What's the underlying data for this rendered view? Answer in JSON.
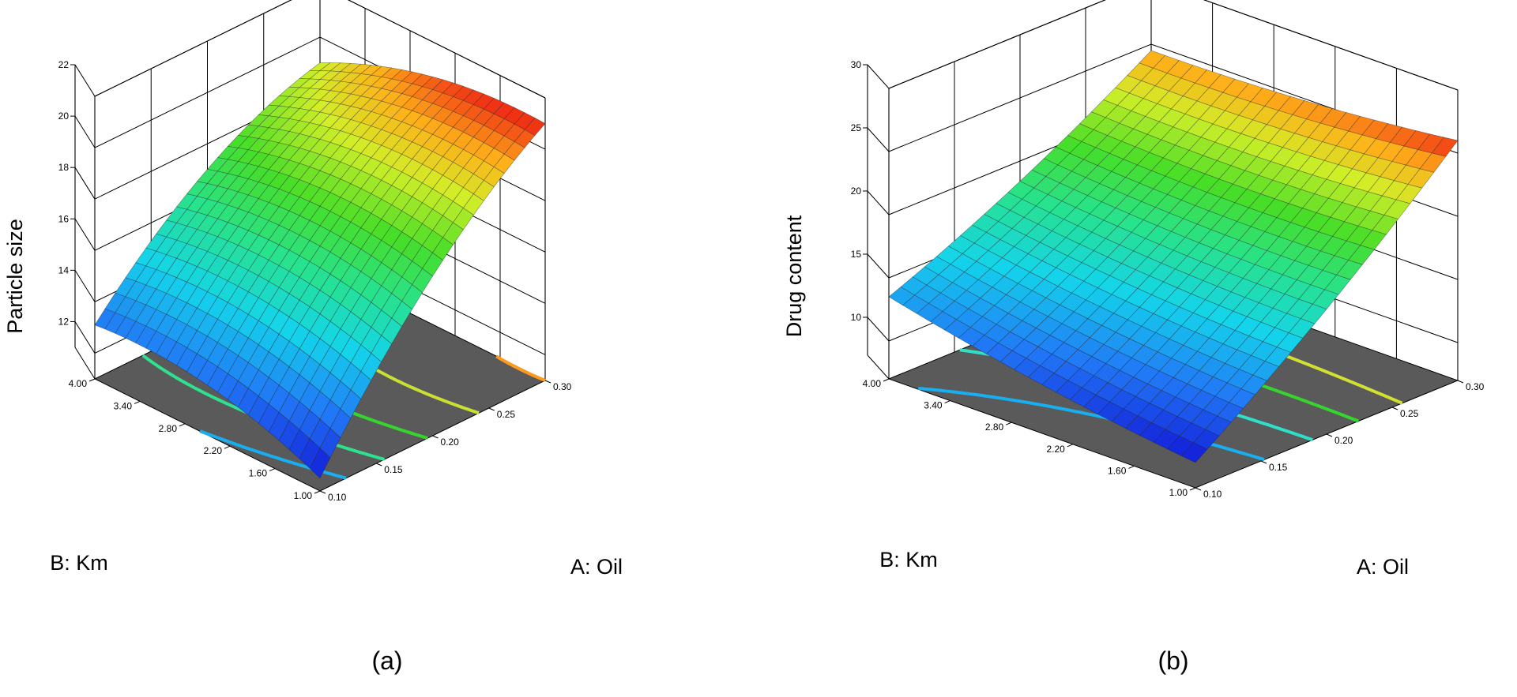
{
  "chart_data": [
    {
      "type": "surface3d",
      "panel_label": "(a)",
      "xlabel": "A: Oil",
      "ylabel": "B: Km",
      "zlabel": "Particle size",
      "xlim": [
        0.1,
        0.3
      ],
      "ylim": [
        1.0,
        4.0
      ],
      "zlim": [
        11,
        22
      ],
      "x_ticks": [
        "0.10",
        "0.15",
        "0.20",
        "0.25",
        "0.30"
      ],
      "y_ticks": [
        "1.00",
        "1.60",
        "2.20",
        "2.80",
        "3.40",
        "4.00"
      ],
      "z_ticks": [
        "12",
        "14",
        "16",
        "18",
        "20",
        "22"
      ],
      "surface_corners": {
        "x0.10_y1.00": 11.5,
        "x0.30_y1.00": 21.0,
        "x0.10_y4.00": 13.1,
        "x0.30_y4.00": 19.0
      },
      "surface_curvature": 1.6,
      "color_range": [
        11.5,
        21.0
      ],
      "contour_levels": [
        13,
        15,
        17,
        19,
        21
      ],
      "contour_colors": [
        "#19aef0",
        "#2fe08e",
        "#37d42f",
        "#c9e032",
        "#ff9a1c"
      ]
    },
    {
      "type": "surface3d",
      "panel_label": "(b)",
      "xlabel": "A: Oil",
      "ylabel": "B: Km",
      "zlabel": "Drug content",
      "xlim": [
        0.1,
        0.3
      ],
      "ylim": [
        1.0,
        4.0
      ],
      "zlim": [
        7,
        30
      ],
      "x_ticks": [
        "0.10",
        "0.15",
        "0.20",
        "0.25",
        "0.30"
      ],
      "y_ticks": [
        "1.00",
        "1.60",
        "2.20",
        "2.80",
        "3.40",
        "4.00"
      ],
      "z_ticks": [
        "10",
        "15",
        "20",
        "25",
        "30"
      ],
      "surface_corners": {
        "x0.10_y1.00": 9.0,
        "x0.30_y1.00": 26.0,
        "x0.10_y4.00": 13.5,
        "x0.30_y4.00": 24.5
      },
      "surface_curvature": -1.0,
      "color_range": [
        9.0,
        26.0
      ],
      "contour_levels": [
        13,
        16,
        19,
        22
      ],
      "contour_colors": [
        "#19aef0",
        "#2fe0c8",
        "#37d42f",
        "#d2e032"
      ]
    }
  ]
}
